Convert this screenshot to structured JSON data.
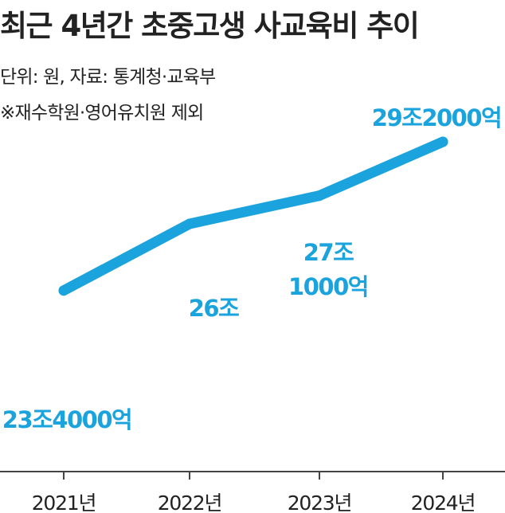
{
  "header": {
    "title": "최근 4년간 초중고생 사교육비 추이",
    "unit_source": "단위: 원, 자료: 통계청·교육부",
    "exclusion_note": "※재수학원·영어유치원 제외"
  },
  "colors": {
    "line": "#1aa3dd",
    "label": "#1aa3dd",
    "text": "#222222",
    "axis": "#444444"
  },
  "chart_data": {
    "type": "line",
    "categories": [
      "2021년",
      "2022년",
      "2023년",
      "2024년"
    ],
    "series": [
      {
        "values": [
          23.4,
          26,
          27.1,
          29.2
        ],
        "labels": [
          [
            "23조4000억"
          ],
          [
            "26조"
          ],
          [
            "27조",
            "1000억"
          ],
          [
            "29조2000억"
          ]
        ]
      }
    ],
    "title": "최근 4년간 초중고생 사교육비 추이",
    "xlabel": "",
    "ylabel": "",
    "unit": "조 원",
    "ylim": [
      19.6,
      29.2
    ],
    "grid": false,
    "legend": "none"
  }
}
